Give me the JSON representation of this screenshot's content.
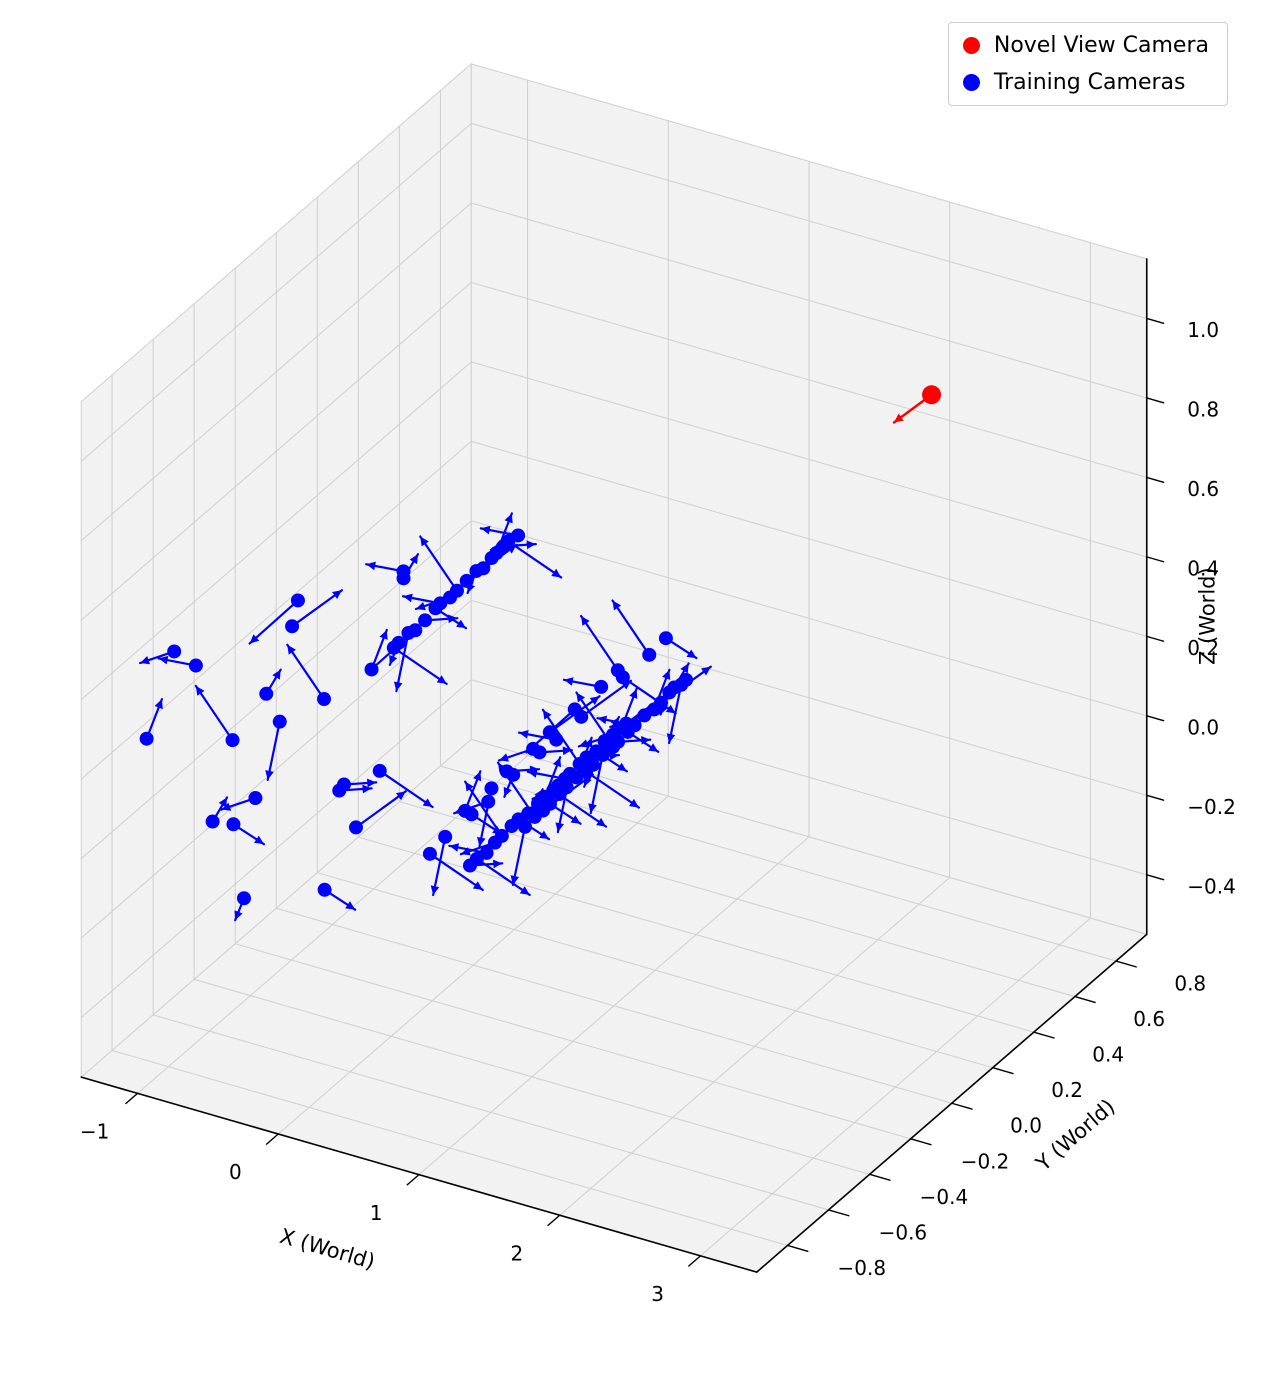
{
  "figure": {
    "background": "#ffffff"
  },
  "chart_data": {
    "type": "scatter",
    "projection": "3d",
    "title": "",
    "xlabel": "X (World)",
    "ylabel": "Y (World)",
    "zlabel": "Z (World)",
    "xlim": [
      -1.4,
      3.4
    ],
    "ylim": [
      -0.95,
      0.95
    ],
    "zlim": [
      -0.55,
      1.15
    ],
    "xticks": {
      "values": [
        -1,
        0,
        1,
        2,
        3
      ],
      "labels": [
        "−1",
        "0",
        "1",
        "2",
        "3"
      ]
    },
    "yticks": {
      "values": [
        -0.8,
        -0.6,
        -0.4,
        -0.2,
        0.0,
        0.2,
        0.4,
        0.6,
        0.8
      ],
      "labels": [
        "−0.8",
        "−0.6",
        "−0.4",
        "−0.2",
        "0.0",
        "0.2",
        "0.4",
        "0.6",
        "0.8"
      ]
    },
    "zticks": {
      "values": [
        -0.4,
        -0.2,
        0.0,
        0.2,
        0.4,
        0.6,
        0.8,
        1.0
      ],
      "labels": [
        "−0.4",
        "−0.2",
        "0.0",
        "0.2",
        "0.4",
        "0.6",
        "0.8",
        "1.0"
      ]
    },
    "view": {
      "elev": 30,
      "azim": -60
    },
    "grid": true,
    "colors": {
      "pane": "#f2f2f2",
      "grid": "#cfcfcf",
      "axis": "#000000",
      "novel": "#ff0000",
      "training": "#0000ff"
    },
    "legend": {
      "position": "upper right",
      "entries": [
        {
          "label": "Novel View Camera",
          "color": "#ff0000"
        },
        {
          "label": "Training Cameras",
          "color": "#0000ff"
        }
      ]
    },
    "novel_view_camera": {
      "position": [
        2.6,
        0.45,
        0.95
      ],
      "direction": [
        -0.85,
        -0.45,
        -0.28
      ],
      "arrow_length": 0.06
    },
    "training_cameras": {
      "arrow_length": 0.085,
      "dirs": [
        [
          1,
          0.2,
          -0.3
        ],
        [
          0.7,
          0.7,
          0.2
        ],
        [
          0.1,
          1,
          -0.4
        ],
        [
          -0.6,
          0.8,
          0.1
        ],
        [
          -1,
          0.1,
          0.3
        ],
        [
          -0.7,
          -0.6,
          -0.3
        ],
        [
          -0.1,
          -1,
          0.25
        ],
        [
          0.6,
          -0.75,
          -0.45
        ],
        [
          0.9,
          -0.3,
          0.5
        ],
        [
          -0.4,
          -0.85,
          0.45
        ],
        [
          -0.9,
          0.4,
          -0.55
        ],
        [
          0.35,
          0.9,
          -0.75
        ]
      ],
      "points": [
        [
          -0.2,
          -0.25,
          0.34,
          0
        ],
        [
          0.85,
          0.43,
          0.05,
          7
        ],
        [
          0.2,
          0.01,
          0.52,
          2
        ],
        [
          1.25,
          -0.41,
          0.23,
          9
        ],
        [
          0.6,
          0.27,
          -0.06,
          4
        ],
        [
          -0.05,
          -0.15,
          0.41,
          11
        ],
        [
          1.0,
          -0.58,
          0.12,
          6
        ],
        [
          0.35,
          0.1,
          -0.17,
          1
        ],
        [
          1.4,
          -0.32,
          0.3,
          8
        ],
        [
          0.76,
          0.36,
          0.01,
          3
        ],
        [
          0.11,
          -0.06,
          0.48,
          10
        ],
        [
          1.16,
          -0.48,
          0.19,
          5
        ],
        [
          0.51,
          0.2,
          -0.1,
          0
        ],
        [
          -0.14,
          -0.22,
          0.37,
          7
        ],
        [
          0.91,
          -0.64,
          0.08,
          2
        ],
        [
          0.26,
          0.04,
          0.54,
          9
        ],
        [
          1.31,
          -0.38,
          0.26,
          4
        ],
        [
          0.66,
          0.3,
          -0.03,
          11
        ],
        [
          0.01,
          -0.12,
          0.43,
          6
        ],
        [
          1.06,
          -0.54,
          0.15,
          1
        ],
        [
          0.41,
          0.14,
          -0.14,
          8
        ],
        [
          1.46,
          -0.28,
          0.32,
          3
        ],
        [
          0.81,
          0.4,
          0.04,
          10
        ],
        [
          0.16,
          -0.02,
          0.5,
          5
        ],
        [
          1.21,
          -0.44,
          0.21,
          0
        ],
        [
          0.57,
          0.24,
          -0.07,
          7
        ],
        [
          -0.08,
          -0.18,
          0.39,
          2
        ],
        [
          0.97,
          -0.6,
          0.1,
          9
        ],
        [
          0.32,
          0.08,
          -0.18,
          4
        ],
        [
          1.37,
          -0.34,
          0.28,
          11
        ],
        [
          0.72,
          0.34,
          0.0,
          6
        ],
        [
          0.07,
          -0.08,
          0.46,
          1
        ],
        [
          1.12,
          -0.5,
          0.17,
          8
        ],
        [
          0.47,
          0.18,
          -0.11,
          3
        ],
        [
          -0.18,
          -0.24,
          0.35,
          10
        ],
        [
          0.87,
          0.44,
          0.06,
          5
        ],
        [
          0.22,
          0.02,
          0.53,
          0
        ],
        [
          1.27,
          -0.4,
          0.24,
          7
        ],
        [
          0.62,
          0.28,
          -0.05,
          2
        ],
        [
          -0.03,
          -0.14,
          0.42,
          9
        ],
        [
          1.02,
          -0.56,
          0.13,
          4
        ],
        [
          0.37,
          0.12,
          -0.16,
          11
        ],
        [
          1.43,
          -0.3,
          0.31,
          6
        ],
        [
          0.78,
          0.38,
          0.02,
          1
        ],
        [
          0.13,
          -0.04,
          0.48,
          8
        ],
        [
          1.18,
          -0.46,
          0.2,
          3
        ],
        [
          0.53,
          0.22,
          -0.09,
          10
        ],
        [
          -0.12,
          -0.2,
          0.37,
          5
        ],
        [
          0.93,
          -0.62,
          0.09,
          0
        ],
        [
          0.28,
          0.06,
          -0.2,
          7
        ],
        [
          1.33,
          -0.36,
          0.27,
          2
        ],
        [
          0.68,
          0.32,
          -0.02,
          9
        ],
        [
          0.03,
          -0.1,
          0.44,
          4
        ],
        [
          1.08,
          -0.52,
          0.16,
          11
        ],
        [
          0.43,
          0.16,
          -0.13,
          6
        ],
        [
          1.48,
          -0.27,
          0.33,
          1
        ],
        [
          0.83,
          0.41,
          0.05,
          8
        ],
        [
          0.18,
          -0.01,
          0.51,
          3
        ],
        [
          1.23,
          -0.43,
          0.22,
          10
        ],
        [
          0.59,
          0.25,
          -0.06,
          5
        ],
        [
          -0.06,
          -0.17,
          -0.2,
          0
        ],
        [
          0.99,
          -0.59,
          0.26,
          7
        ],
        [
          0.34,
          0.09,
          -0.02,
          2
        ],
        [
          1.39,
          -0.33,
          0.44,
          9
        ],
        [
          0.74,
          0.35,
          0.15,
          4
        ],
        [
          0.09,
          -0.07,
          -0.13,
          11
        ],
        [
          1.14,
          -0.49,
          0.33,
          6
        ],
        [
          0.49,
          0.19,
          0.04,
          1
        ],
        [
          -0.16,
          -0.23,
          0.51,
          8
        ],
        [
          0.89,
          -0.65,
          0.22,
          3
        ],
        [
          0.24,
          0.03,
          -0.06,
          10
        ],
        [
          1.29,
          -0.39,
          0.4,
          5
        ],
        [
          0.64,
          0.29,
          0.11,
          0
        ],
        [
          -0.01,
          -0.13,
          -0.17,
          7
        ],
        [
          1.04,
          -0.55,
          0.29,
          2
        ],
        [
          0.4,
          0.13,
          0.0,
          9
        ],
        [
          1.45,
          -0.29,
          0.47,
          4
        ],
        [
          0.8,
          0.39,
          0.18,
          11
        ],
        [
          0.15,
          -0.03,
          -0.11,
          6
        ],
        [
          1.2,
          -0.45,
          0.36,
          1
        ],
        [
          -1.3,
          -0.7,
          0.2,
          3
        ],
        [
          -1.05,
          -0.55,
          -0.05,
          8
        ],
        [
          -0.85,
          -0.3,
          0.35,
          1
        ],
        [
          -0.6,
          -0.65,
          0.1,
          6
        ],
        [
          -0.4,
          -0.45,
          -0.2,
          11
        ],
        [
          -1.2,
          -0.35,
          0.05,
          4
        ],
        [
          -0.95,
          -0.7,
          0.42,
          9
        ],
        [
          -0.7,
          -0.15,
          -0.1,
          2
        ],
        [
          -0.5,
          -0.6,
          0.28,
          7
        ],
        [
          -0.3,
          -0.25,
          0.02,
          0
        ],
        [
          -1.1,
          -0.1,
          0.3,
          5
        ],
        [
          -0.9,
          -0.5,
          -0.25,
          10
        ],
        [
          -0.65,
          -0.05,
          0.15,
          3
        ],
        [
          -0.45,
          -0.7,
          0.4,
          8
        ],
        [
          -0.25,
          -0.4,
          -0.05,
          1
        ],
        [
          -1.25,
          -0.6,
          0.38,
          6
        ],
        [
          -0.8,
          -0.62,
          0.0,
          11
        ],
        [
          -0.55,
          -0.35,
          0.22,
          4
        ],
        [
          -0.35,
          -0.1,
          0.45,
          9
        ],
        [
          -0.15,
          -0.55,
          0.12,
          2
        ]
      ]
    }
  }
}
